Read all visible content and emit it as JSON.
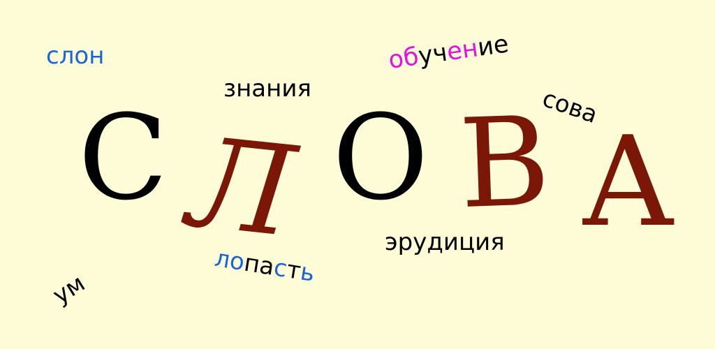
{
  "colors": {
    "background": "#fefcd6",
    "black": "#000000",
    "blue": "#1a66d9",
    "magenta": "#e80fe0",
    "maroon": "#7a1707"
  },
  "title": {
    "letters": [
      {
        "char": "С",
        "color": "#000000"
      },
      {
        "char": "Л",
        "color": "#7a1707"
      },
      {
        "char": "О",
        "color": "#000000"
      },
      {
        "char": "В",
        "color": "#7a1707"
      },
      {
        "char": "А",
        "color": "#7a1707"
      }
    ]
  },
  "words": {
    "slon": {
      "segments": [
        {
          "text": "с",
          "color": "#1a66d9"
        },
        {
          "text": "лон",
          "color": "#1a66d9"
        }
      ]
    },
    "znaniya": {
      "segments": [
        {
          "text": "знания",
          "color": "#000000"
        }
      ]
    },
    "obuchenie": {
      "segments": [
        {
          "text": "об",
          "color": "#e80fe0"
        },
        {
          "text": "уч",
          "color": "#000000"
        },
        {
          "text": "ен",
          "color": "#e80fe0"
        },
        {
          "text": "ие",
          "color": "#000000"
        }
      ]
    },
    "sova": {
      "segments": [
        {
          "text": "сова",
          "color": "#000000"
        }
      ]
    },
    "erudiciya": {
      "segments": [
        {
          "text": "эрудиция",
          "color": "#000000"
        }
      ]
    },
    "lopast": {
      "segments": [
        {
          "text": "ло",
          "color": "#1a66d9"
        },
        {
          "text": "па",
          "color": "#000000"
        },
        {
          "text": "с",
          "color": "#1a66d9"
        },
        {
          "text": "т",
          "color": "#000000"
        },
        {
          "text": "ь",
          "color": "#1a66d9"
        }
      ]
    },
    "um": {
      "segments": [
        {
          "text": "ум",
          "color": "#000000"
        }
      ]
    }
  }
}
